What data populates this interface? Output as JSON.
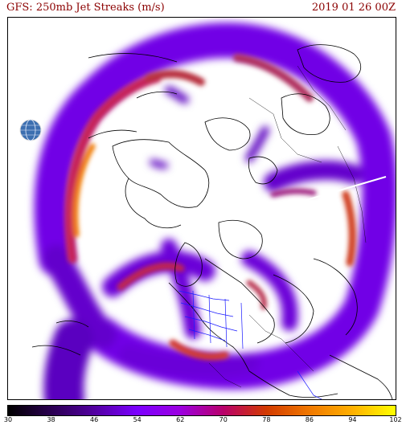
{
  "header": {
    "title": "GFS: 250mb Jet Streaks (m/s)",
    "valid_time": "2019 01 26 00Z"
  },
  "map": {
    "projection": "north-polar-stereographic",
    "features": [
      "coastlines",
      "country-borders",
      "us-state-borders",
      "jet-streak-shading"
    ],
    "colors": {
      "land_line": "#000000",
      "state_line": "#1a1aff",
      "jet_low": "#5e00c8",
      "jet_mid": "#b02040",
      "jet_high": "#f07800"
    }
  },
  "colorbar": {
    "min": 30,
    "max": 102,
    "ticks": [
      "30",
      "38",
      "46",
      "54",
      "62",
      "70",
      "78",
      "86",
      "94",
      "102"
    ],
    "colors": [
      "#000000",
      "#2a0050",
      "#5200a0",
      "#7b00ff",
      "#9c00e0",
      "#b8006a",
      "#d23a00",
      "#f07800",
      "#ffb000",
      "#ffff00"
    ]
  },
  "logo": {
    "icon": "globe-icon"
  }
}
